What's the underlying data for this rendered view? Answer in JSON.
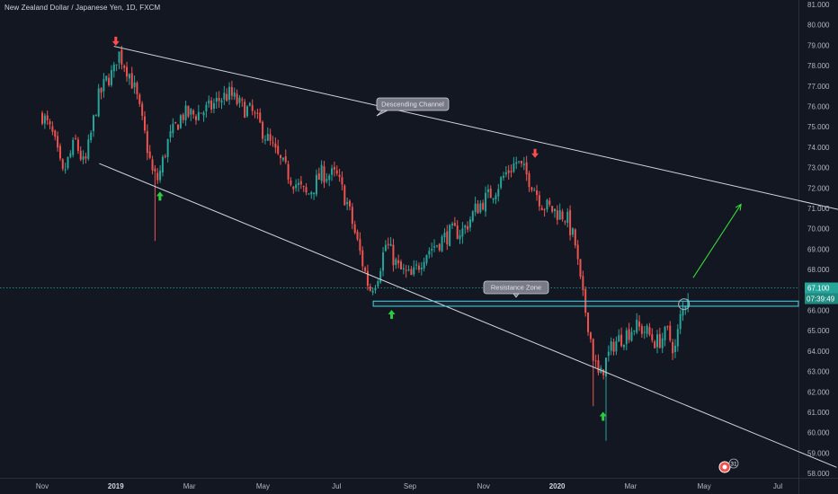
{
  "header": {
    "title": "New Zealand Dollar / Japanese Yen, 1D, FXCM"
  },
  "colors": {
    "background": "#131722",
    "up": "#26a69a",
    "down": "#ef5350",
    "trendline": "#d1d4dc",
    "zone": "#4dd0e1",
    "price_tag": "#26a69a",
    "arrow_up": "#2ecc40",
    "arrow_down": "#ff4d4d",
    "projection": "#39e639"
  },
  "annotations": {
    "channel_label": "Descending Channel",
    "zone_label": "Resistance Zone",
    "badge": "31"
  },
  "price_tag": {
    "price": "67.100",
    "countdown": "07:39:49"
  },
  "chart_data": {
    "type": "candlestick",
    "title": "New Zealand Dollar / Japanese Yen, 1D, FXCM",
    "ylim": [
      57.7,
      81.3
    ],
    "y_ticks": [
      "58.000",
      "59.000",
      "60.000",
      "61.000",
      "62.000",
      "63.000",
      "64.000",
      "65.000",
      "66.000",
      "67.000",
      "68.000",
      "69.000",
      "70.000",
      "71.000",
      "72.000",
      "73.000",
      "74.000",
      "75.000",
      "76.000",
      "77.000",
      "78.000",
      "79.000",
      "80.000",
      "81.000"
    ],
    "x_ticks": [
      {
        "label": "Nov",
        "bold": false
      },
      {
        "label": "2019",
        "bold": true
      },
      {
        "label": "Mar",
        "bold": false
      },
      {
        "label": "May",
        "bold": false
      },
      {
        "label": "Jul",
        "bold": false
      },
      {
        "label": "Sep",
        "bold": false
      },
      {
        "label": "Nov",
        "bold": false
      },
      {
        "label": "2020",
        "bold": true
      },
      {
        "label": "Mar",
        "bold": false
      },
      {
        "label": "May",
        "bold": false
      },
      {
        "label": "Jul",
        "bold": false
      }
    ],
    "x_tick_months": [
      0,
      2,
      4,
      6,
      8,
      10,
      12,
      14,
      16,
      18,
      20
    ],
    "last_price": 67.1,
    "resistance_zone": [
      66.2,
      66.45
    ],
    "path": [
      [
        0,
        75.6
      ],
      [
        0.3,
        74.5
      ],
      [
        0.55,
        72.6
      ],
      [
        0.9,
        74.3
      ],
      [
        1.15,
        73.0
      ],
      [
        1.5,
        76.3
      ],
      [
        1.75,
        77.3
      ],
      [
        1.95,
        77.7
      ],
      [
        2.05,
        78.7
      ],
      [
        2.35,
        77.7
      ],
      [
        2.55,
        76.6
      ],
      [
        2.8,
        74.5
      ],
      [
        3.0,
        72.7
      ],
      [
        3.15,
        72.4
      ],
      [
        3.4,
        74.2
      ],
      [
        3.8,
        75.6
      ],
      [
        4.15,
        75.6
      ],
      [
        4.55,
        75.9
      ],
      [
        4.85,
        76.4
      ],
      [
        5.1,
        76.6
      ],
      [
        5.4,
        76.0
      ],
      [
        5.7,
        75.7
      ],
      [
        6.0,
        74.8
      ],
      [
        6.4,
        73.5
      ],
      [
        6.75,
        72.5
      ],
      [
        7.2,
        71.6
      ],
      [
        7.6,
        72.7
      ],
      [
        8.0,
        72.6
      ],
      [
        8.3,
        71.2
      ],
      [
        8.7,
        68.4
      ],
      [
        8.9,
        67.0
      ],
      [
        9.1,
        67.6
      ],
      [
        9.35,
        69.3
      ],
      [
        9.7,
        68.0
      ],
      [
        10.05,
        67.6
      ],
      [
        10.4,
        68.8
      ],
      [
        10.75,
        69.3
      ],
      [
        11.1,
        69.8
      ],
      [
        11.45,
        69.9
      ],
      [
        11.8,
        71.0
      ],
      [
        12.3,
        71.9
      ],
      [
        12.6,
        72.7
      ],
      [
        12.9,
        73.3
      ],
      [
        13.3,
        72.3
      ],
      [
        13.6,
        71.2
      ],
      [
        13.9,
        70.9
      ],
      [
        14.25,
        70.6
      ],
      [
        14.5,
        69.2
      ],
      [
        14.6,
        67.7
      ],
      [
        14.7,
        66.6
      ],
      [
        14.85,
        65.3
      ],
      [
        15.0,
        63.6
      ],
      [
        15.15,
        62.6
      ],
      [
        15.3,
        63.4
      ],
      [
        15.55,
        64.4
      ],
      [
        15.85,
        64.8
      ],
      [
        16.1,
        65.2
      ],
      [
        16.4,
        65.0
      ],
      [
        16.7,
        64.4
      ],
      [
        17.0,
        64.9
      ],
      [
        17.2,
        64.0
      ],
      [
        17.35,
        65.6
      ],
      [
        17.5,
        66.5
      ],
      [
        17.62,
        67.1
      ]
    ],
    "channel": {
      "upper": [
        [
          1.95,
          78.95
        ],
        [
          22.5,
          70.6
        ]
      ],
      "lower": [
        [
          1.55,
          73.2
        ],
        [
          21.6,
          58.3
        ]
      ]
    },
    "projection": [
      [
        17.7,
        67.6
      ],
      [
        19.0,
        71.2
      ]
    ],
    "markers": {
      "down": [
        [
          2.0,
          79.2
        ],
        [
          13.4,
          73.7
        ]
      ],
      "up": [
        [
          3.2,
          71.6
        ],
        [
          9.5,
          65.8
        ],
        [
          15.25,
          60.8
        ]
      ]
    }
  }
}
